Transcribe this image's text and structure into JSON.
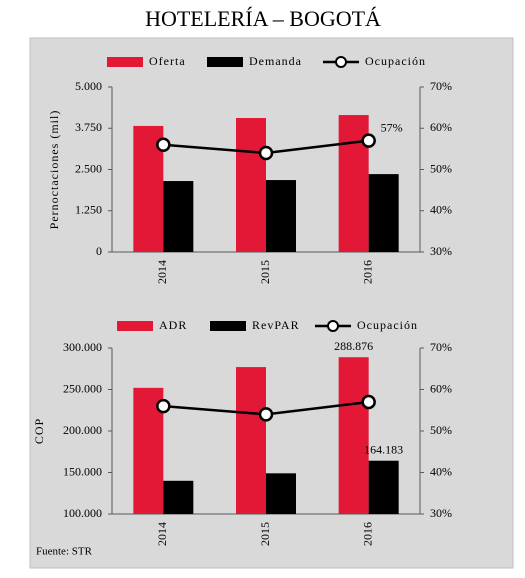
{
  "title": "HOTELERÍA – BOGOTÁ",
  "source": "Fuente: STR",
  "chart_data": [
    {
      "type": "bar",
      "y_label": "Pernoctaciones (mil)",
      "categories": [
        "2014",
        "2015",
        "2016"
      ],
      "series": [
        {
          "name": "Oferta",
          "color": "#e31837",
          "values": [
            3820,
            4060,
            4150
          ]
        },
        {
          "name": "Demanda",
          "color": "#000000",
          "values": [
            2150,
            2180,
            2360
          ]
        },
        {
          "name": "Ocupación",
          "type": "line",
          "axis": "y2",
          "color": "#000000",
          "values": [
            56,
            54,
            57
          ],
          "value_labels": [
            null,
            null,
            "57%"
          ]
        }
      ],
      "ylim": [
        0,
        5000
      ],
      "yticks": [
        0,
        {
          "value": 1250,
          "label": "1.250"
        },
        {
          "value": 2500,
          "label": "2.500"
        },
        {
          "value": 3750,
          "label": "3.750"
        },
        {
          "value": 5000,
          "label": "5.000"
        }
      ],
      "y2lim": [
        30,
        70
      ],
      "y2ticks": [
        {
          "value": 30,
          "label": "30%"
        },
        {
          "value": 40,
          "label": "40%"
        },
        {
          "value": 50,
          "label": "50%"
        },
        {
          "value": 60,
          "label": "60%"
        },
        {
          "value": 70,
          "label": "70%"
        }
      ]
    },
    {
      "type": "bar",
      "y_label": "COP",
      "categories": [
        "2014",
        "2015",
        "2016"
      ],
      "series": [
        {
          "name": "ADR",
          "color": "#e31837",
          "values": [
            252000,
            277000,
            288876
          ],
          "value_labels": [
            null,
            null,
            "288.876"
          ]
        },
        {
          "name": "RevPAR",
          "color": "#000000",
          "values": [
            140000,
            149000,
            164183
          ],
          "value_labels": [
            null,
            null,
            "164.183"
          ]
        },
        {
          "name": "Ocupación",
          "type": "line",
          "axis": "y2",
          "color": "#000000",
          "values": [
            56,
            54,
            57
          ]
        }
      ],
      "ylim": [
        100000,
        300000
      ],
      "yticks": [
        {
          "value": 100000,
          "label": "100.000"
        },
        {
          "value": 150000,
          "label": "150.000"
        },
        {
          "value": 200000,
          "label": "200.000"
        },
        {
          "value": 250000,
          "label": "250.000"
        },
        {
          "value": 300000,
          "label": "300.000"
        }
      ],
      "y2lim": [
        30,
        70
      ],
      "y2ticks": [
        {
          "value": 30,
          "label": "30%"
        },
        {
          "value": 40,
          "label": "40%"
        },
        {
          "value": 50,
          "label": "50%"
        },
        {
          "value": 60,
          "label": "60%"
        },
        {
          "value": 70,
          "label": "70%"
        }
      ]
    }
  ]
}
